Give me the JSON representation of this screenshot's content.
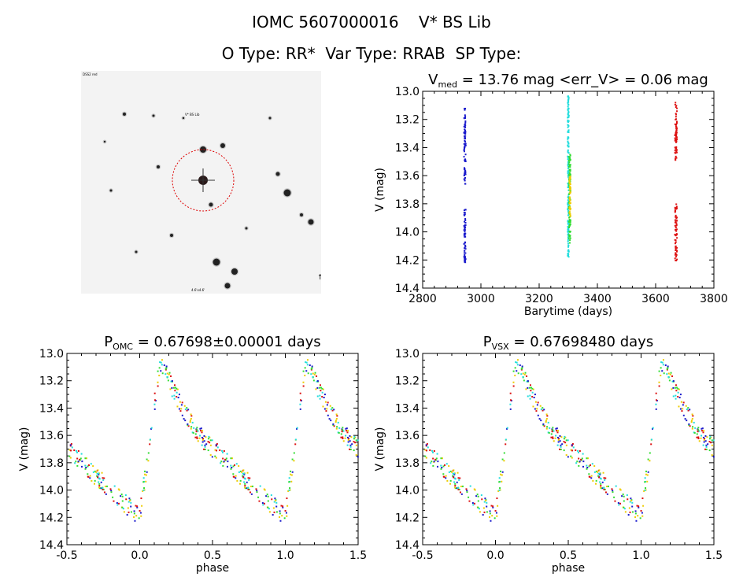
{
  "header": {
    "title_line1": "IOMC 5607000016    V* BS Lib",
    "title_line2": "O Type: RR*  Var Type: RRAB  SP Type:"
  },
  "finder_chart": {
    "label_top_left": "DSS2 red",
    "label_mid": "V* BS Lib",
    "label_bottom": "4.6'x4.6'",
    "circle_color": "#dd0000"
  },
  "chart_data": [
    {
      "type": "scatter",
      "id": "lightcurve_time",
      "title_main": "V",
      "title_sub": "med",
      "title_rest": " = 13.76 mag <err_V> = 0.06 mag",
      "xlabel": "Barytime (days)",
      "ylabel": "V (mag)",
      "xlim": [
        2800,
        3800
      ],
      "ylim": [
        14.4,
        13.0
      ],
      "y_inverted": true,
      "xticks": [
        2800,
        3000,
        3200,
        3400,
        3600,
        3800
      ],
      "yticks": [
        13.0,
        13.2,
        13.4,
        13.6,
        13.8,
        14.0,
        14.2,
        14.4
      ],
      "series": [
        {
          "color": "#1a1acc",
          "x_center": 2945,
          "x_spread": 6,
          "y_ranges": [
            [
              13.12,
              13.66
            ],
            [
              13.83,
              14.22
            ]
          ]
        },
        {
          "color": "#22dddd",
          "x_center": 3300,
          "x_spread": 4,
          "y_ranges": [
            [
              13.03,
              14.18
            ]
          ]
        },
        {
          "color": "#33dd33",
          "x_center": 3305,
          "x_spread": 6,
          "y_ranges": [
            [
              13.45,
              14.1
            ]
          ]
        },
        {
          "color": "#eecc00",
          "x_center": 3306,
          "x_spread": 4,
          "y_ranges": [
            [
              13.6,
              13.9
            ]
          ]
        },
        {
          "color": "#dd1111",
          "x_center": 3670,
          "x_spread": 7,
          "y_ranges": [
            [
              13.08,
              13.5
            ],
            [
              13.8,
              14.22
            ]
          ]
        }
      ]
    },
    {
      "type": "scatter",
      "id": "phase_omc",
      "title_main": "P",
      "title_sub": "OMC",
      "title_rest": " = 0.67698±0.00001 days",
      "xlabel": "phase",
      "ylabel": "V (mag)",
      "xlim": [
        -0.5,
        1.5
      ],
      "ylim": [
        14.4,
        13.0
      ],
      "y_inverted": true,
      "xticks": [
        -0.5,
        0.0,
        0.5,
        1.0,
        1.5
      ],
      "yticks": [
        13.0,
        13.2,
        13.4,
        13.6,
        13.8,
        14.0,
        14.2,
        14.4
      ],
      "template": [
        [
          0.0,
          14.2
        ],
        [
          0.07,
          13.65
        ],
        [
          0.14,
          13.05
        ],
        [
          0.2,
          13.2
        ],
        [
          0.32,
          13.45
        ],
        [
          0.45,
          13.65
        ],
        [
          0.55,
          13.75
        ],
        [
          0.65,
          13.85
        ],
        [
          0.8,
          14.0
        ],
        [
          0.9,
          14.1
        ],
        [
          1.0,
          14.2
        ]
      ],
      "series_colors": [
        "#1a1acc",
        "#dd1111",
        "#33dd33",
        "#22dddd",
        "#eecc00"
      ]
    },
    {
      "type": "scatter",
      "id": "phase_vsx",
      "title_main": "P",
      "title_sub": "VSX",
      "title_rest": " = 0.67698480 days",
      "xlabel": "phase",
      "ylabel": "V (mag)",
      "xlim": [
        -0.5,
        1.5
      ],
      "ylim": [
        14.4,
        13.0
      ],
      "y_inverted": true,
      "xticks": [
        -0.5,
        0.0,
        0.5,
        1.0,
        1.5
      ],
      "yticks": [
        13.0,
        13.2,
        13.4,
        13.6,
        13.8,
        14.0,
        14.2,
        14.4
      ],
      "template": [
        [
          0.0,
          14.2
        ],
        [
          0.07,
          13.65
        ],
        [
          0.14,
          13.05
        ],
        [
          0.2,
          13.2
        ],
        [
          0.32,
          13.45
        ],
        [
          0.45,
          13.65
        ],
        [
          0.55,
          13.75
        ],
        [
          0.65,
          13.85
        ],
        [
          0.8,
          14.0
        ],
        [
          0.9,
          14.1
        ],
        [
          1.0,
          14.2
        ]
      ],
      "series_colors": [
        "#1a1acc",
        "#dd1111",
        "#33dd33",
        "#22dddd",
        "#eecc00"
      ]
    }
  ]
}
